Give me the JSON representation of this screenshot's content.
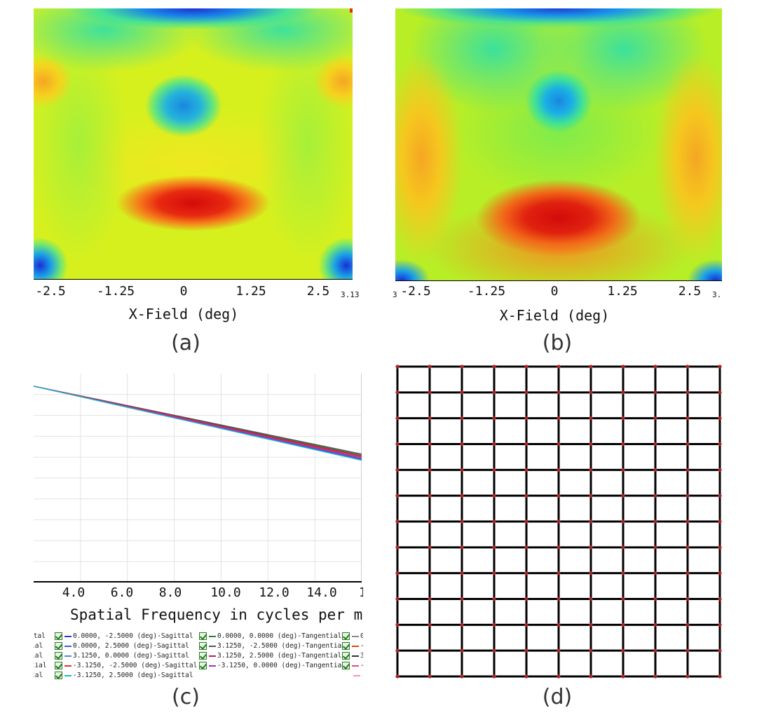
{
  "panel_a": {
    "caption": "(a)",
    "chart_data": {
      "type": "heatmap",
      "xlabel": "X-Field (deg)",
      "x_ticks": [
        "-2.5",
        "-1.25",
        "0",
        "1.25",
        "2.5"
      ],
      "x_edge_label": "3.13",
      "xlim": [
        -3.13,
        3.13
      ],
      "colormap": [
        "#1a2fd6",
        "#1aa0e6",
        "#2ee0a8",
        "#c8f02a",
        "#f5e61e",
        "#f5a623",
        "#e23014",
        "#d40a0a"
      ]
    }
  },
  "panel_b": {
    "caption": "(b)",
    "chart_data": {
      "type": "heatmap",
      "xlabel": "X-Field (deg)",
      "x_ticks": [
        "-2.5",
        "-1.25",
        "0",
        "1.25",
        "2.5"
      ],
      "x_edge_label_left": "3",
      "x_edge_label": "3.",
      "xlim": [
        -3.13,
        3.13
      ]
    }
  },
  "panel_c": {
    "caption": "(c)",
    "chart_data": {
      "type": "line",
      "xlabel": "Spatial Frequency in cycles per m",
      "x_ticks": [
        "4.0",
        "6.0",
        "8.0",
        "10.0",
        "12.0",
        "14.0"
      ],
      "x_edge_label": "1",
      "xlim": [
        2.0,
        16.0
      ],
      "ylim": [
        0.0,
        1.0
      ],
      "series": [
        {
          "name": "0.0000, -2.5000 (deg)-Sagittal",
          "color": "#1f3fbf",
          "x": [
            2.0,
            16.0
          ],
          "y": [
            0.94,
            0.59
          ]
        },
        {
          "name": "0.0000, 0.0000 (deg)-Tangential",
          "color": "#2e7d32",
          "x": [
            2.0,
            16.0
          ],
          "y": [
            0.94,
            0.61
          ]
        },
        {
          "name": "0.0000, 2.5000 (deg)-Sagittal",
          "color": "#3b5bdb",
          "x": [
            2.0,
            16.0
          ],
          "y": [
            0.94,
            0.59
          ]
        },
        {
          "name": "3.1250, -2.5000 (deg)-Tangential",
          "color": "#555555",
          "x": [
            2.0,
            16.0
          ],
          "y": [
            0.94,
            0.615
          ]
        },
        {
          "name": "3.1250, 0.0000 (deg)-Sagittal",
          "color": "#5c7cfa",
          "x": [
            2.0,
            16.0
          ],
          "y": [
            0.94,
            0.6
          ]
        },
        {
          "name": "3.1250, 2.5000 (deg)-Tangential",
          "color": "#c2185b",
          "x": [
            2.0,
            16.0
          ],
          "y": [
            0.94,
            0.605
          ]
        },
        {
          "name": "-3.1250, -2.5000 (deg)-Sagittal",
          "color": "#e03131",
          "x": [
            2.0,
            16.0
          ],
          "y": [
            0.94,
            0.6
          ]
        },
        {
          "name": "-3.1250, 0.0000 (deg)-Tangential",
          "color": "#9c36b5",
          "x": [
            2.0,
            16.0
          ],
          "y": [
            0.94,
            0.595
          ]
        },
        {
          "name": "-3.1250, 2.5000 (deg)-Sagittal",
          "color": "#1cb5c9",
          "x": [
            2.0,
            16.0
          ],
          "y": [
            0.94,
            0.585
          ]
        }
      ],
      "legend_left_fragments": [
        "ttal",
        "ial",
        "ial",
        "ntial",
        "tal"
      ],
      "legend_right_fragments": [
        "0",
        "-3",
        "3",
        "-3",
        "-"
      ]
    }
  },
  "panel_d": {
    "caption": "(d)",
    "chart_data": {
      "type": "grid-distortion",
      "rows": 13,
      "cols": 11,
      "line_color": "#000000",
      "point_color": "#b22222"
    }
  }
}
